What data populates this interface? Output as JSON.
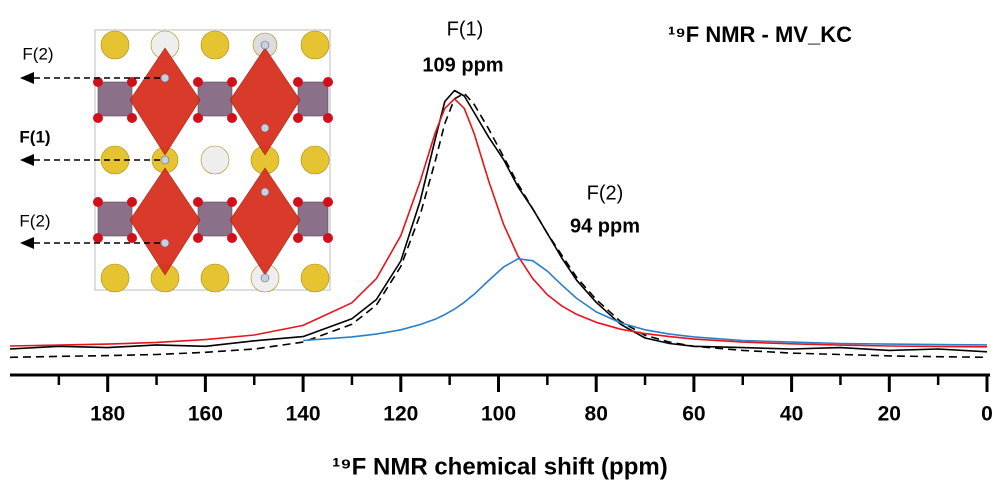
{
  "chart_data": {
    "type": "line",
    "title": "¹⁹F NMR - MV_KC",
    "x_label": "¹⁹F NMR chemical shift (ppm)",
    "annotations": [
      "F(1)",
      "109 ppm",
      "F(2)",
      "94 ppm",
      "F(2)",
      "F(1)",
      "F(2)"
    ],
    "x": [
      200,
      190,
      180,
      170,
      160,
      150,
      140,
      130,
      125,
      120,
      116,
      113,
      111,
      109,
      107,
      105,
      102,
      99,
      96,
      93,
      90,
      87,
      84,
      80,
      75,
      70,
      65,
      60,
      50,
      40,
      30,
      20,
      10,
      0
    ],
    "series": [
      {
        "color": "#000000",
        "style": "solid",
        "values": [
          4,
          5,
          4.5,
          5.5,
          5,
          7,
          8.5,
          15,
          22,
          36,
          58,
          80,
          94,
          98,
          96,
          90,
          81,
          73,
          63,
          55,
          46,
          37,
          29,
          21,
          13,
          8,
          6,
          5,
          4.5,
          4,
          4.5,
          3.5,
          4,
          3
        ]
      },
      {
        "color": "#000000",
        "style": "dashed",
        "values": [
          1,
          1.3,
          1.6,
          2,
          2.8,
          4,
          6.5,
          13,
          20,
          34,
          53,
          72,
          86,
          95,
          97,
          93,
          84,
          74,
          64,
          55,
          46,
          38,
          30,
          22,
          14,
          9,
          6.5,
          5,
          3.5,
          2.5,
          2,
          1.5,
          1.2,
          1
        ]
      },
      {
        "color": "#e8141b",
        "style": "solid",
        "values": [
          5.1,
          5.4,
          5.8,
          6.4,
          7.4,
          9.1,
          12.6,
          20.8,
          29.6,
          45.2,
          65.1,
          82.4,
          91.5,
          95,
          91.5,
          82.4,
          65.1,
          49.5,
          37.8,
          29.6,
          23.7,
          19.6,
          16.6,
          13.7,
          11.2,
          9.6,
          8.5,
          7.6,
          6.5,
          5.9,
          5.4,
          5.1,
          4.9,
          4.8
        ]
      },
      {
        "color": "#2a7fc8",
        "style": "solid",
        "values": [
          null,
          null,
          null,
          null,
          null,
          null,
          7.1,
          8.4,
          9.4,
          11,
          12.9,
          14.8,
          16.5,
          18.5,
          21,
          23.9,
          28.9,
          33.8,
          36.8,
          36.1,
          32.3,
          27.2,
          22.4,
          17.5,
          13.5,
          11,
          9.4,
          8.4,
          7.1,
          6.5,
          6,
          5.8,
          5.6,
          5.5
        ]
      }
    ],
    "xlim": [
      200,
      0
    ],
    "ylim": [
      0,
      100
    ],
    "xticks": [
      180,
      160,
      140,
      120,
      100,
      80,
      60,
      40,
      20,
      0
    ],
    "minor_xticks": [
      190,
      170,
      150,
      130,
      110,
      90,
      70,
      50,
      30,
      10
    ]
  }
}
